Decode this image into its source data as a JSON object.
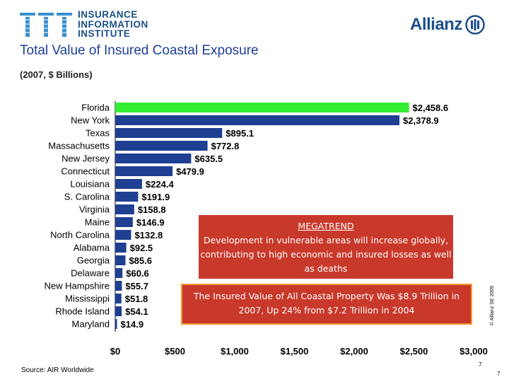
{
  "header": {
    "logo_lines": [
      "INSURANCE",
      "INFORMATION",
      "INSTITUTE"
    ],
    "partner_logo": "Allianz",
    "title": "Total Value of Insured Coastal Exposure",
    "subtitle": "(2007, $ Billions)"
  },
  "chart_data": {
    "type": "bar",
    "orientation": "horizontal",
    "categories": [
      "Florida",
      "New York",
      "Texas",
      "Massachusetts",
      "New Jersey",
      "Connecticut",
      "Louisiana",
      "S. Carolina",
      "Virginia",
      "Maine",
      "North Carolina",
      "Alabama",
      "Georgia",
      "Delaware",
      "New Hampshire",
      "Mississippi",
      "Rhode Island",
      "Maryland"
    ],
    "values": [
      2458.6,
      2378.9,
      895.1,
      772.8,
      635.5,
      479.9,
      224.4,
      191.9,
      158.8,
      146.9,
      132.8,
      92.5,
      85.6,
      60.6,
      55.7,
      51.8,
      54.1,
      14.9
    ],
    "value_labels": [
      "$2,458.6",
      "$2,378.9",
      "$895.1",
      "$772.8",
      "$635.5",
      "$479.9",
      "$224.4",
      "$191.9",
      "$158.8",
      "$146.9",
      "$132.8",
      "$92.5",
      "$85.6",
      "$60.6",
      "$55.7",
      "$51.8",
      "$54.1",
      "$14.9"
    ],
    "xlim": [
      0,
      3000
    ],
    "x_ticks": [
      0,
      500,
      1000,
      1500,
      2000,
      2500,
      3000
    ],
    "x_tick_labels": [
      "$0",
      "$500",
      "$1,000",
      "$1,500",
      "$2,000",
      "$2,500",
      "$3,000"
    ],
    "bar_color": "#1f3f92",
    "highlight_color": "#33ee33",
    "highlight_index": 0,
    "grid": false
  },
  "callouts": {
    "megatrend_heading": "MEGATREND",
    "megatrend_text": "Development in vulnerable areas will increase globally, contributing to high economic and insured losses as well as deaths",
    "stat_text": "The Insured Value of All Coastal Property Was $8.9 Trillion in 2007, Up 24% from $7.2 Trillion in 2004",
    "box_color": "#c8392b",
    "stat_border_color": "#f39a2c"
  },
  "footer": {
    "source": "Source: AIR Worldwide",
    "copyright": "© Allianz SE 2009",
    "page_number": "7"
  }
}
